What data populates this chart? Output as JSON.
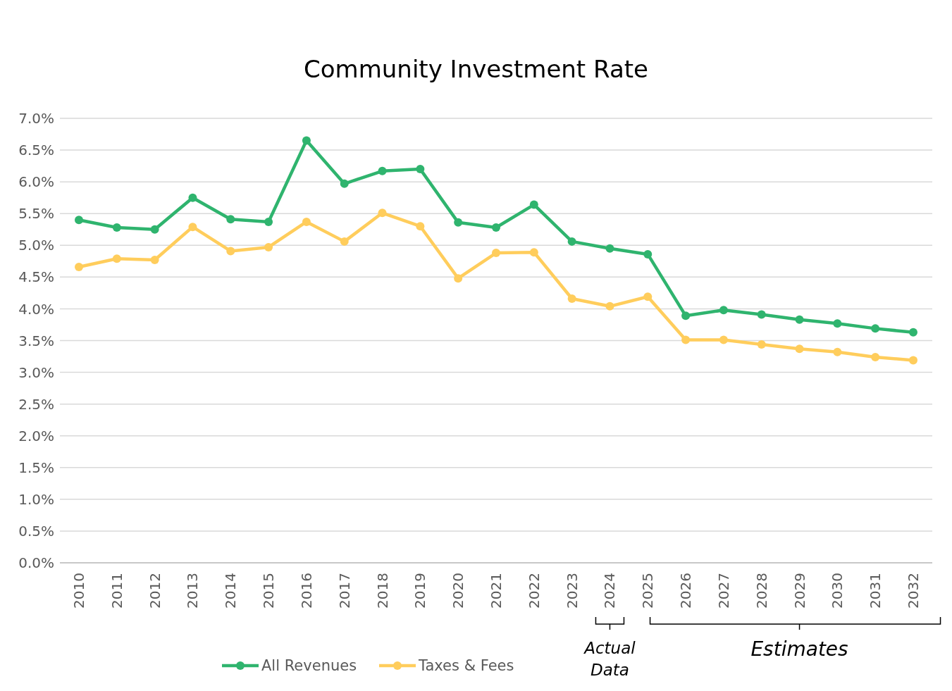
{
  "chart_data": {
    "type": "line",
    "title": "Community Investment Rate",
    "categories": [
      "2010",
      "2011",
      "2012",
      "2013",
      "2014",
      "2015",
      "2016",
      "2017",
      "2018",
      "2019",
      "2020",
      "2021",
      "2022",
      "2023",
      "2024",
      "2025",
      "2026",
      "2027",
      "2028",
      "2029",
      "2030",
      "2031",
      "2032"
    ],
    "series": [
      {
        "name": "All Revenues",
        "color": "#2fb46e",
        "values": [
          5.4,
          5.28,
          5.25,
          5.75,
          5.41,
          5.37,
          6.65,
          5.97,
          6.17,
          6.2,
          5.36,
          5.28,
          5.64,
          5.06,
          4.95,
          4.86,
          3.89,
          3.98,
          3.91,
          3.83,
          3.77,
          3.69,
          3.63
        ]
      },
      {
        "name": "Taxes & Fees",
        "color": "#ffcd5c",
        "values": [
          4.66,
          4.79,
          4.77,
          5.29,
          4.91,
          4.97,
          5.37,
          5.06,
          5.51,
          5.3,
          4.48,
          4.88,
          4.89,
          4.16,
          4.04,
          4.19,
          3.51,
          3.51,
          3.44,
          3.37,
          3.32,
          3.24,
          3.19
        ]
      }
    ],
    "ylim": [
      0,
      7
    ],
    "yticks": [
      {
        "value": 0,
        "label": "0.0%"
      },
      {
        "value": 0.5,
        "label": "0.5%"
      },
      {
        "value": 1,
        "label": "1.0%"
      },
      {
        "value": 1.5,
        "label": "1.5%"
      },
      {
        "value": 2,
        "label": "2.0%"
      },
      {
        "value": 2.5,
        "label": "2.5%"
      },
      {
        "value": 3,
        "label": "3.0%"
      },
      {
        "value": 3.5,
        "label": "3.5%"
      },
      {
        "value": 4,
        "label": "4.0%"
      },
      {
        "value": 4.5,
        "label": "4.5%"
      },
      {
        "value": 5,
        "label": "5.0%"
      },
      {
        "value": 5.5,
        "label": "5.5%"
      },
      {
        "value": 6,
        "label": "6.0%"
      },
      {
        "value": 6.5,
        "label": "6.5%"
      },
      {
        "value": 7,
        "label": "7.0%"
      }
    ],
    "grid": "y",
    "legend": "bottom",
    "marker": "circle",
    "line_style": "solid",
    "annotations": [
      {
        "text": "Actual Data",
        "x": "2024"
      },
      {
        "text": "Estimates",
        "x": "2029"
      }
    ]
  }
}
